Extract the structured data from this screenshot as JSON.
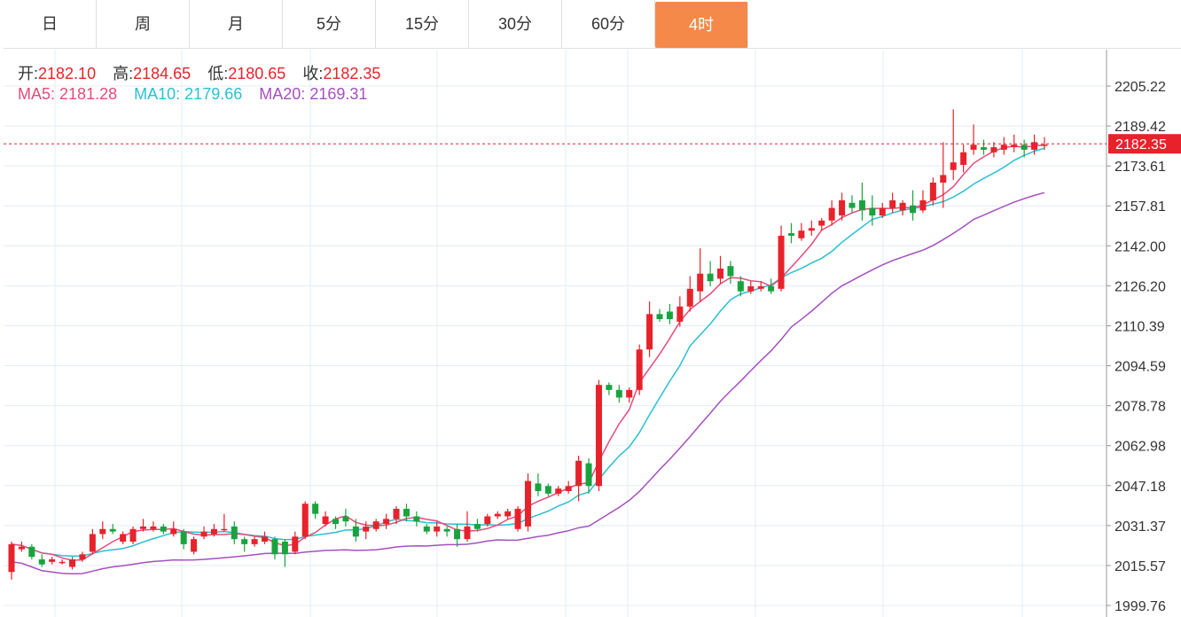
{
  "tabs": [
    {
      "label": "日",
      "active": false
    },
    {
      "label": "周",
      "active": false
    },
    {
      "label": "月",
      "active": false
    },
    {
      "label": "5分",
      "active": false
    },
    {
      "label": "15分",
      "active": false
    },
    {
      "label": "30分",
      "active": false
    },
    {
      "label": "60分",
      "active": false
    },
    {
      "label": "4时",
      "active": true
    }
  ],
  "ohlc_info": {
    "open_label": "开:",
    "open": "2182.10",
    "high_label": "高:",
    "high": "2184.65",
    "low_label": "低:",
    "low": "2180.65",
    "close_label": "收:",
    "close": "2182.35"
  },
  "ma_info": {
    "ma5_label": "MA5:",
    "ma5": "2181.28",
    "ma10_label": "MA10:",
    "ma10": "2179.66",
    "ma20_label": "MA20:",
    "ma20": "2169.31"
  },
  "colors": {
    "up": "#e8222b",
    "down": "#19a33f",
    "ma5": "#e54b7a",
    "ma10": "#29c0d4",
    "ma20": "#a550c0",
    "accent": "#f5894a",
    "grid": "#e3ecf4"
  },
  "chart_data": {
    "type": "candlestick",
    "y_ticks": [
      2205.22,
      2189.42,
      2173.61,
      2157.81,
      2142.0,
      2126.2,
      2110.39,
      2094.59,
      2078.78,
      2062.98,
      2047.18,
      2031.37,
      2015.57,
      1999.76
    ],
    "ylim": [
      1999.76,
      2205.22
    ],
    "last_price": "2182.35",
    "candles": [
      [
        2013,
        2024,
        2010,
        2025
      ],
      [
        2022,
        2023,
        2021,
        2025
      ],
      [
        2023,
        2019,
        2018,
        2024
      ],
      [
        2018,
        2016,
        2015,
        2020
      ],
      [
        2017,
        2018,
        2016,
        2019
      ],
      [
        2017,
        2017,
        2016,
        2018
      ],
      [
        2015,
        2018,
        2014,
        2019
      ],
      [
        2018,
        2020,
        2017,
        2021
      ],
      [
        2021,
        2028,
        2020,
        2030
      ],
      [
        2028,
        2030,
        2026,
        2033
      ],
      [
        2030,
        2029,
        2028,
        2032
      ],
      [
        2025,
        2028,
        2024,
        2029
      ],
      [
        2025,
        2030,
        2024,
        2031
      ],
      [
        2030,
        2031,
        2029,
        2034
      ],
      [
        2030,
        2031,
        2029,
        2033
      ],
      [
        2031,
        2029,
        2028,
        2032
      ],
      [
        2028,
        2030,
        2027,
        2033
      ],
      [
        2029,
        2024,
        2022,
        2030
      ],
      [
        2021,
        2026,
        2020,
        2027
      ],
      [
        2027,
        2029,
        2026,
        2031
      ],
      [
        2028,
        2030,
        2027,
        2032
      ],
      [
        2030,
        2030,
        2029,
        2036
      ],
      [
        2031,
        2026,
        2024,
        2033
      ],
      [
        2026,
        2024,
        2021,
        2027
      ],
      [
        2024,
        2026,
        2023,
        2027
      ],
      [
        2025,
        2027,
        2024,
        2029
      ],
      [
        2026,
        2020,
        2018,
        2027
      ],
      [
        2025,
        2020,
        2015,
        2026
      ],
      [
        2021,
        2027,
        2020,
        2029
      ],
      [
        2027,
        2040,
        2026,
        2041
      ],
      [
        2040,
        2036,
        2034,
        2041
      ],
      [
        2032,
        2035,
        2031,
        2037
      ],
      [
        2034,
        2032,
        2030,
        2035
      ],
      [
        2035,
        2033,
        2031,
        2038
      ],
      [
        2031,
        2027,
        2025,
        2034
      ],
      [
        2029,
        2031,
        2026,
        2033
      ],
      [
        2030,
        2033,
        2029,
        2034
      ],
      [
        2032,
        2034,
        2030,
        2036
      ],
      [
        2034,
        2038,
        2032,
        2039
      ],
      [
        2038,
        2035,
        2033,
        2040
      ],
      [
        2035,
        2033,
        2031,
        2037
      ],
      [
        2031,
        2029,
        2028,
        2032
      ],
      [
        2029,
        2031,
        2027,
        2033
      ],
      [
        2030,
        2029,
        2027,
        2031
      ],
      [
        2030,
        2026,
        2023,
        2032
      ],
      [
        2026,
        2031,
        2025,
        2037
      ],
      [
        2032,
        2030,
        2029,
        2034
      ],
      [
        2032,
        2035,
        2031,
        2036
      ],
      [
        2035,
        2036,
        2034,
        2037
      ],
      [
        2035,
        2037,
        2034,
        2038
      ],
      [
        2030,
        2038,
        2029,
        2039
      ],
      [
        2031,
        2049,
        2029,
        2052
      ],
      [
        2048,
        2045,
        2043,
        2052
      ],
      [
        2047,
        2044,
        2043,
        2048
      ],
      [
        2044,
        2046,
        2043,
        2047
      ],
      [
        2045,
        2047,
        2044,
        2049
      ],
      [
        2047,
        2057,
        2041,
        2059
      ],
      [
        2056,
        2047,
        2044,
        2058
      ],
      [
        2047,
        2087,
        2045,
        2089
      ],
      [
        2087,
        2085,
        2083,
        2088
      ],
      [
        2085,
        2082,
        2080,
        2087
      ],
      [
        2082,
        2085,
        2080,
        2086
      ],
      [
        2085,
        2101,
        2083,
        2103
      ],
      [
        2101,
        2115,
        2098,
        2120
      ],
      [
        2115,
        2113,
        2112,
        2117
      ],
      [
        2116,
        2113,
        2111,
        2119
      ],
      [
        2112,
        2118,
        2110,
        2122
      ],
      [
        2118,
        2125,
        2116,
        2130
      ],
      [
        2124,
        2131,
        2120,
        2141
      ],
      [
        2131,
        2128,
        2126,
        2136
      ],
      [
        2129,
        2133,
        2127,
        2138
      ],
      [
        2134,
        2130,
        2127,
        2136
      ],
      [
        2128,
        2124,
        2122,
        2130
      ],
      [
        2124,
        2126,
        2123,
        2128
      ],
      [
        2125,
        2126,
        2124,
        2128
      ],
      [
        2126,
        2124,
        2123,
        2129
      ],
      [
        2125,
        2146,
        2124,
        2150
      ],
      [
        2147,
        2146,
        2143,
        2151
      ],
      [
        2145,
        2148,
        2144,
        2151
      ],
      [
        2148,
        2149,
        2146,
        2152
      ],
      [
        2150,
        2152,
        2148,
        2153
      ],
      [
        2152,
        2157,
        2150,
        2160
      ],
      [
        2154,
        2160,
        2152,
        2163
      ],
      [
        2159,
        2157,
        2155,
        2162
      ],
      [
        2160,
        2156,
        2152,
        2167
      ],
      [
        2157,
        2154,
        2150,
        2162
      ],
      [
        2154,
        2157,
        2153,
        2159
      ],
      [
        2157,
        2160,
        2155,
        2163
      ],
      [
        2156,
        2159,
        2154,
        2160
      ],
      [
        2158,
        2155,
        2152,
        2164
      ],
      [
        2156,
        2160,
        2155,
        2164
      ],
      [
        2160,
        2167,
        2158,
        2169
      ],
      [
        2167,
        2170,
        2157,
        2183
      ],
      [
        2172,
        2175,
        2168,
        2196
      ],
      [
        2174,
        2179,
        2171,
        2182
      ],
      [
        2180,
        2182,
        2178,
        2190
      ],
      [
        2181,
        2180,
        2178,
        2184
      ],
      [
        2179,
        2181,
        2177,
        2183
      ],
      [
        2180,
        2182,
        2178,
        2185
      ],
      [
        2181,
        2182,
        2179,
        2186
      ],
      [
        2182,
        2180,
        2177,
        2184
      ],
      [
        2180,
        2183,
        2178,
        2186
      ],
      [
        2182,
        2182,
        2180,
        2185
      ]
    ]
  }
}
